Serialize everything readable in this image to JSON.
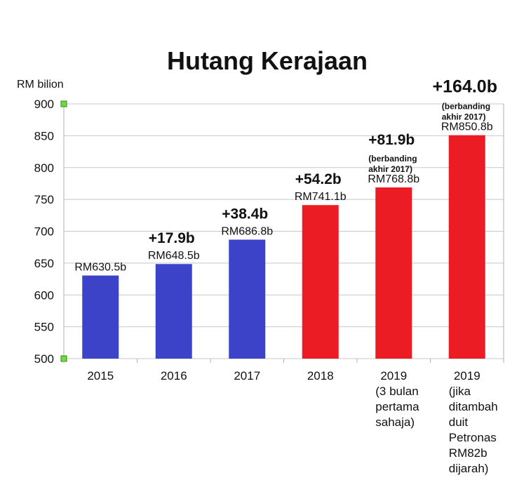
{
  "chart_data": {
    "type": "bar",
    "title": "Hutang Kerajaan",
    "ylabel": "RM bilion",
    "ylim": [
      500,
      900
    ],
    "yticks": [
      500,
      550,
      600,
      650,
      700,
      750,
      800,
      850,
      900
    ],
    "grid": true,
    "categories": [
      [
        "2015"
      ],
      [
        "2016"
      ],
      [
        "2017"
      ],
      [
        "2018"
      ],
      [
        "2019",
        "(3 bulan",
        "pertama",
        "sahaja)"
      ],
      [
        "2019",
        "(jika",
        "ditambah",
        "duit",
        "Petronas",
        "RM82b",
        "dijarah)"
      ]
    ],
    "values": [
      630.5,
      648.5,
      686.8,
      741.1,
      768.8,
      850.8
    ],
    "value_labels": [
      "RM630.5b",
      "RM648.5b",
      "RM686.8b",
      "RM741.1b",
      "RM768.8b",
      "RM850.8b"
    ],
    "delta_labels": [
      "",
      "+17.9b",
      "+38.4b",
      "+54.2b",
      "+81.9b",
      "+164.0b"
    ],
    "delta_notes": [
      [],
      [],
      [],
      [],
      [
        "(berbanding",
        "akhir 2017)"
      ],
      [
        "(berbanding",
        "akhir 2017)"
      ]
    ],
    "bar_colors": [
      "#3c43c8",
      "#3c43c8",
      "#3c43c8",
      "#ec1c24",
      "#ec1c24",
      "#ec1c24"
    ]
  }
}
